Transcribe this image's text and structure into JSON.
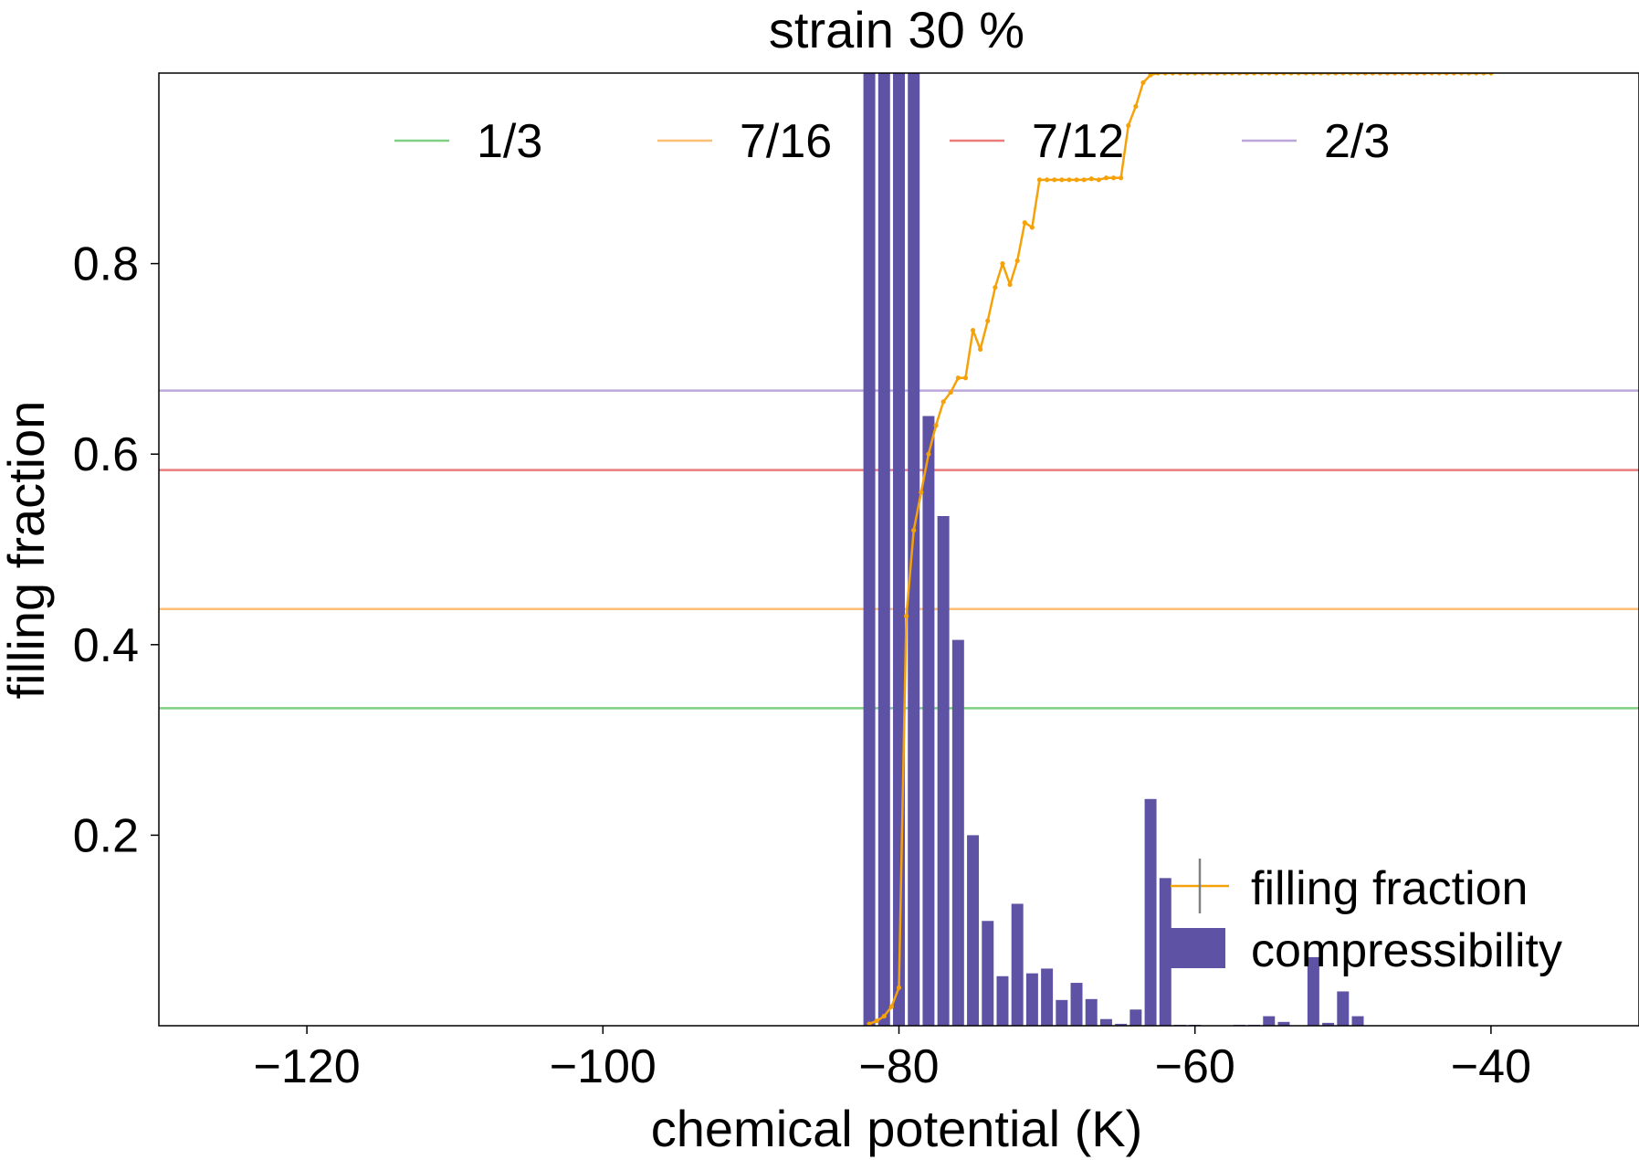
{
  "chart_data": {
    "type": "bar",
    "title": "strain 30 %",
    "xlabel": "chemical potential (K)",
    "ylabel": "filling fraction",
    "xlim": [
      -130,
      -30
    ],
    "ylim": [
      0,
      1.0
    ],
    "xticks": [
      -120,
      -100,
      -80,
      -60,
      -40
    ],
    "xtick_labels": [
      "−120",
      "−100",
      "−80",
      "−60",
      "−40"
    ],
    "yticks": [
      0.2,
      0.4,
      0.6,
      0.8
    ],
    "ytick_labels": [
      "0.2",
      "0.4",
      "0.6",
      "0.8"
    ],
    "colors": {
      "filling": "#f5a20a",
      "bars": "#5e52a4",
      "errorbar": "#808080",
      "frame": "#000000"
    },
    "hlines": [
      {
        "name": "1/3",
        "y": 0.3333,
        "color": "#7fcf83"
      },
      {
        "name": "7/16",
        "y": 0.4375,
        "color": "#fdbf74"
      },
      {
        "name": "7/12",
        "y": 0.5833,
        "color": "#ea7b7b"
      },
      {
        "name": "2/3",
        "y": 0.6667,
        "color": "#bca6da"
      }
    ],
    "legend_top": {
      "placement": "upper center",
      "entries": [
        "1/3",
        "7/16",
        "7/12",
        "2/3"
      ]
    },
    "legend_bottom": {
      "placement": "lower right",
      "filling_label": "filling fraction",
      "compressibility_label": "compressibility"
    },
    "compressibility": {
      "name": "compressibility",
      "x": [
        -82,
        -81,
        -80,
        -79,
        -78,
        -77,
        -76,
        -75,
        -74,
        -73,
        -72,
        -71,
        -70,
        -69,
        -68,
        -67,
        -66,
        -65,
        -64,
        -63,
        -62,
        -61,
        -60,
        -59,
        -58,
        -57,
        -56,
        -55,
        -54,
        -53,
        -52,
        -51,
        -50,
        -49
      ],
      "values": [
        1.0,
        1.0,
        1.0,
        1.0,
        0.64,
        0.535,
        0.405,
        0.2,
        0.11,
        0.052,
        0.128,
        0.055,
        0.06,
        0.027,
        0.045,
        0.028,
        0.007,
        0.002,
        0.017,
        0.238,
        0.155,
        0.001,
        0.001,
        0.0,
        0.0,
        0.001,
        0.001,
        0.01,
        0.004,
        0.0,
        0.072,
        0.003,
        0.036,
        0.01
      ],
      "width": 0.8
    },
    "filling_fraction": {
      "name": "filling fraction",
      "x": [
        -82,
        -81.5,
        -81,
        -80.5,
        -80,
        -79.5,
        -79,
        -78.5,
        -78,
        -77.5,
        -77,
        -76.5,
        -76,
        -75.5,
        -75,
        -74.5,
        -74,
        -73.5,
        -73,
        -72.5,
        -72,
        -71.5,
        -71,
        -70.5,
        -70,
        -69.5,
        -69,
        -68.5,
        -68,
        -67.5,
        -67,
        -66.5,
        -66,
        -65.5,
        -65,
        -64.5,
        -64,
        -63.5,
        -63,
        -62.5,
        -62,
        -61.5,
        -61,
        -60.5,
        -60,
        -59.5,
        -59,
        -58.5,
        -58,
        -57.5,
        -57,
        -56.5,
        -56,
        -55.5,
        -55,
        -54.5,
        -54,
        -53.5,
        -53,
        -52.5,
        -52,
        -51.5,
        -51,
        -50.5,
        -50,
        -49.5,
        -49,
        -48.5,
        -48,
        -47.5,
        -47,
        -46.5,
        -46,
        -45.5,
        -45,
        -44.5,
        -44,
        -43.5,
        -43,
        -42.5,
        -42,
        -41.5,
        -41,
        -40.5,
        -40
      ],
      "y": [
        0.002,
        0.005,
        0.01,
        0.02,
        0.04,
        0.43,
        0.52,
        0.56,
        0.6,
        0.63,
        0.655,
        0.665,
        0.68,
        0.68,
        0.73,
        0.71,
        0.74,
        0.775,
        0.8,
        0.778,
        0.803,
        0.843,
        0.838,
        0.888,
        0.888,
        0.888,
        0.888,
        0.888,
        0.888,
        0.888,
        0.889,
        0.888,
        0.89,
        0.89,
        0.89,
        0.945,
        0.965,
        0.99,
        0.998,
        1.0,
        1.0,
        1.0,
        1.0,
        1.0,
        1.0,
        1.0,
        1.0,
        1.0,
        1.0,
        1.0,
        1.0,
        1.0,
        1.0,
        1.0,
        1.0,
        1.0,
        1.0,
        1.0,
        1.0,
        1.0,
        1.0,
        1.0,
        1.0,
        1.0,
        1.0,
        1.0,
        1.0,
        1.0,
        1.0,
        1.0,
        1.0,
        1.0,
        1.0,
        1.0,
        1.0,
        1.0,
        1.0,
        1.0,
        1.0,
        1.0,
        1.0,
        1.0,
        1.0,
        1.0,
        1.0
      ]
    }
  }
}
